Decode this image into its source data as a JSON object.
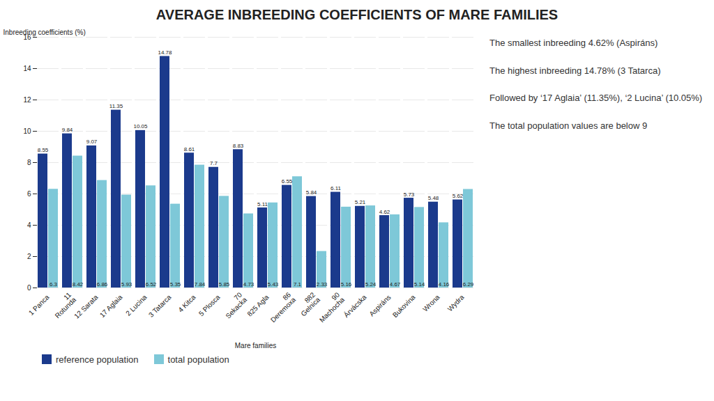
{
  "chart_data": {
    "type": "bar",
    "title": "AVERAGE INBREEDING COEFFICIENTS OF MARE FAMILIES",
    "categories": [
      "1 Panca",
      "11\nRotunda",
      "12 Sarata",
      "17 Aglaia",
      "2 Lucina",
      "3 Tatarca",
      "4 Kitca",
      "5 Plosca",
      "70\nSekacka",
      "825 Agla",
      "86\nDeremoxa",
      "882\nGelnica",
      "90\nMachocha",
      "Árvácska",
      "Aspiráns",
      "Bukovina",
      "Wrona",
      "Wydra"
    ],
    "series": [
      {
        "name": "reference population",
        "color": "#1B3A8C",
        "values": [
          8.55,
          9.84,
          9.07,
          11.35,
          10.05,
          14.78,
          8.61,
          7.7,
          8.83,
          5.11,
          6.55,
          5.84,
          6.11,
          5.21,
          4.62,
          5.73,
          5.48,
          5.62
        ]
      },
      {
        "name": "total population",
        "color": "#7EC8D8",
        "values": [
          6.3,
          8.42,
          6.86,
          5.93,
          6.52,
          5.35,
          7.84,
          5.85,
          4.73,
          5.43,
          7.1,
          2.33,
          5.16,
          5.24,
          4.67,
          5.14,
          4.16,
          6.29
        ]
      }
    ],
    "xlabel": "Mare families",
    "ylabel": "Inbreeding coefficients (%)",
    "ylim": [
      0,
      16
    ],
    "yticks": [
      0,
      2,
      4,
      6,
      8,
      10,
      12,
      14,
      16
    ],
    "grid": true,
    "legend": "lower left",
    "data_labels": true,
    "annotations": [
      "The smallest inbreeding 4.62% (Aspiráns)",
      "The highest inbreeding 14.78% (3 Tatarca)",
      "Followed by ‘17 Aglaia’ (11.35%), ‘2 Lucina’ (10.05%)",
      "The total population values are below 9"
    ]
  }
}
